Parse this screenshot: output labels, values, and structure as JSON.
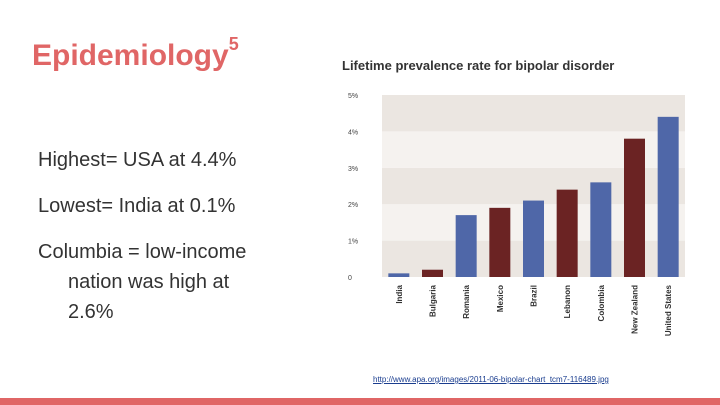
{
  "slide": {
    "title": "Epidemiology",
    "title_sup": "5",
    "bullets": {
      "b1": "Highest= USA at 4.4%",
      "b2": "Lowest= India at 0.1%",
      "b3_line1": "Columbia = low-income",
      "b3_line2": "nation was high at",
      "b3_line3": "2.6%"
    },
    "source": "http://www.apa.org/images/2011-06-bipolar-chart_tcm7-116489.jpg"
  },
  "colors": {
    "accent": "#e06666",
    "blue": "#4f67a8",
    "maroon": "#6b2323",
    "band": "#ebe6e1"
  },
  "chart_data": {
    "type": "bar",
    "title": "Lifetime prevalence rate for bipolar disorder",
    "categories": [
      "India",
      "Bulgaria",
      "Romania",
      "Mexico",
      "Brazil",
      "Lebanon",
      "Colombia",
      "New Zealand",
      "United States"
    ],
    "values": [
      0.1,
      0.2,
      1.7,
      1.9,
      2.1,
      2.4,
      2.6,
      3.8,
      4.4
    ],
    "bar_colors": [
      "blue",
      "maroon",
      "blue",
      "maroon",
      "blue",
      "maroon",
      "blue",
      "maroon",
      "blue"
    ],
    "y_ticks": [
      0,
      1,
      2,
      3,
      4,
      5
    ],
    "y_tick_labels": [
      "0",
      "1%",
      "2%",
      "3%",
      "4%",
      "5%"
    ],
    "ylim": [
      0,
      5
    ],
    "xlabel": "",
    "ylabel": ""
  }
}
